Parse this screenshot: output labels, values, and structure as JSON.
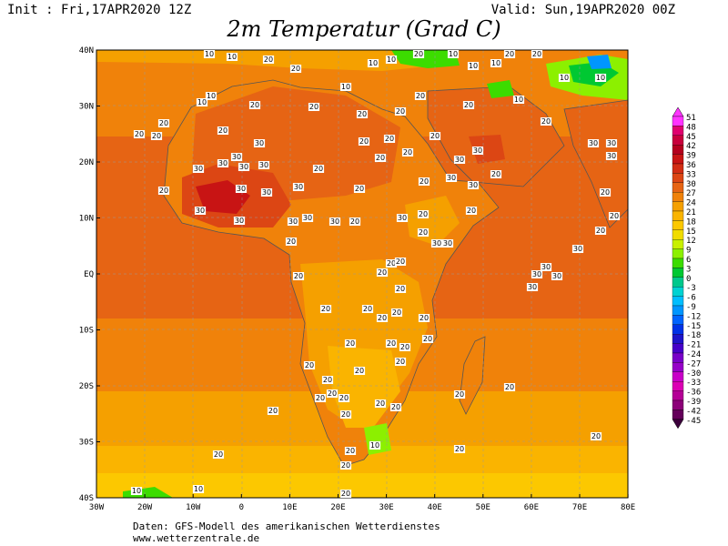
{
  "header": {
    "init": "Init : Fri,17APR2020 12Z",
    "valid": "Valid: Sun,19APR2020 00Z",
    "title": "2m Temperatur (Grad C)"
  },
  "axes": {
    "lat_labels": [
      "40N",
      "30N",
      "20N",
      "10N",
      "EQ",
      "10S",
      "20S",
      "30S",
      "40S"
    ],
    "lon_labels": [
      "30W",
      "20W",
      "10W",
      "0",
      "10E",
      "20E",
      "30E",
      "40E",
      "50E",
      "60E",
      "70E",
      "80E"
    ]
  },
  "legend": {
    "values": [
      "51",
      "48",
      "45",
      "42",
      "39",
      "36",
      "33",
      "30",
      "27",
      "24",
      "21",
      "18",
      "15",
      "12",
      "9",
      "6",
      "3",
      "0",
      "-3",
      "-6",
      "-9",
      "-12",
      "-15",
      "-18",
      "-21",
      "-24",
      "-27",
      "-30",
      "-33",
      "-36",
      "-39",
      "-42",
      "-45"
    ],
    "colors": [
      "#ff33ff",
      "#e0006e",
      "#c8003c",
      "#b4001e",
      "#c81414",
      "#d22d14",
      "#dc4614",
      "#e66414",
      "#f0820a",
      "#f5a000",
      "#fab400",
      "#fcc800",
      "#f0dc00",
      "#c8f000",
      "#8cf000",
      "#3cdc00",
      "#00c832",
      "#00c88c",
      "#00d2d2",
      "#00beff",
      "#0096ff",
      "#0064ff",
      "#0032e6",
      "#1e14c8",
      "#4600c8",
      "#7800c8",
      "#9600c8",
      "#c800c8",
      "#dc00b4",
      "#b40096",
      "#8c0078",
      "#64005a",
      "#3c003c"
    ]
  },
  "map": {
    "contour_labels": [
      "10",
      "20",
      "30"
    ]
  },
  "footer": {
    "line1": "Daten: GFS-Modell des amerikanischen Wetterdienstes",
    "line2": "www.wetterzentrale.de"
  }
}
